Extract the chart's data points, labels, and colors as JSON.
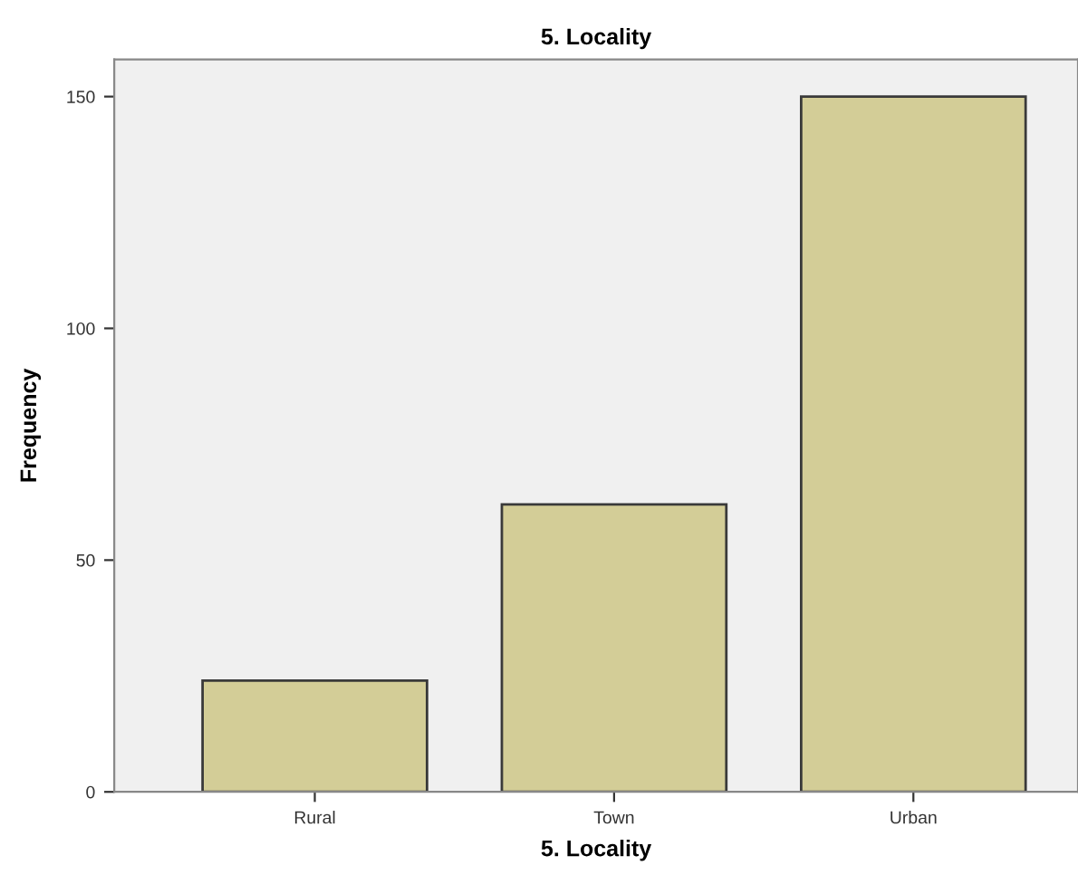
{
  "chart_data": {
    "type": "bar",
    "title": "5. Locality",
    "xlabel": "5. Locality",
    "ylabel": "Frequency",
    "categories": [
      "Rural",
      "Town",
      "Urban"
    ],
    "values": [
      24,
      62,
      150
    ],
    "color": "#d3cd97",
    "ylim": [
      0,
      158
    ],
    "yticks": [
      0,
      50,
      100,
      150
    ],
    "grid": false,
    "legend": false
  }
}
